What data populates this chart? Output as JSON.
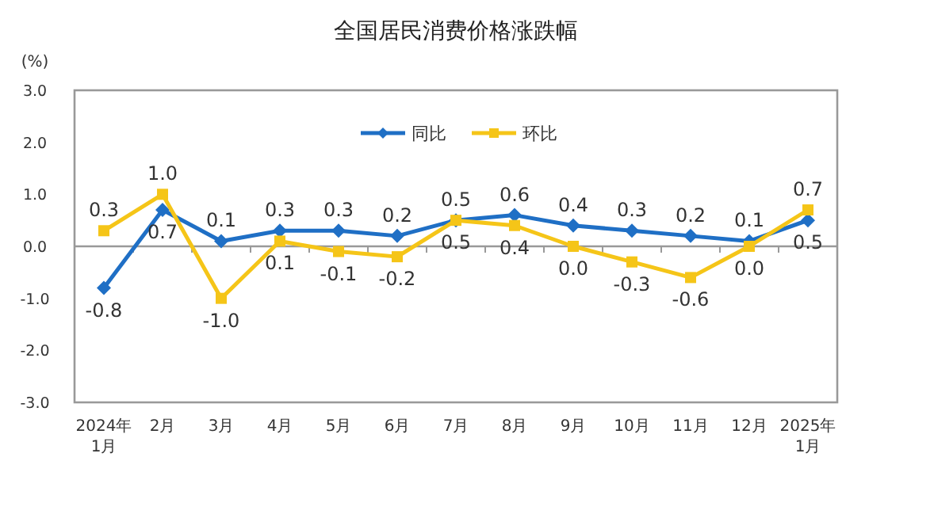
{
  "chart_data": {
    "type": "line",
    "title": "全国居民消费价格涨跌幅",
    "ylabel": "(%)",
    "categories": [
      "2024年\n1月",
      "2月",
      "3月",
      "4月",
      "5月",
      "6月",
      "7月",
      "8月",
      "9月",
      "10月",
      "11月",
      "12月",
      "2025年\n1月"
    ],
    "series": [
      {
        "name": "同比",
        "color": "#1f6fc5",
        "marker": "diamond",
        "values": [
          -0.8,
          0.7,
          0.1,
          0.3,
          0.3,
          0.2,
          0.5,
          0.6,
          0.4,
          0.3,
          0.2,
          0.1,
          0.5
        ],
        "value_labels": [
          "-0.8",
          "0.7",
          "0.1",
          "0.3",
          "0.3",
          "0.2",
          "0.5",
          "0.6",
          "0.4",
          "0.3",
          "0.2",
          "0.1",
          "0.5"
        ]
      },
      {
        "name": "环比",
        "color": "#f5c518",
        "marker": "square",
        "values": [
          0.3,
          1.0,
          -1.0,
          0.1,
          -0.1,
          -0.2,
          0.5,
          0.4,
          0.0,
          -0.3,
          -0.6,
          0.0,
          0.7
        ],
        "value_labels": [
          "0.3",
          "1.0",
          "-1.0",
          "0.1",
          "-0.1",
          "-0.2",
          "0.5",
          "0.4",
          "0.0",
          "-0.3",
          "-0.6",
          "0.0",
          "0.7"
        ]
      }
    ],
    "ylim": [
      -3,
      3
    ],
    "yticks": [
      {
        "value": -3,
        "label": "-3.0"
      },
      {
        "value": -2,
        "label": "-2.0"
      },
      {
        "value": -1,
        "label": "-1.0"
      },
      {
        "value": 0,
        "label": "0.0"
      },
      {
        "value": 1,
        "label": "1.0"
      },
      {
        "value": 2,
        "label": "2.0"
      },
      {
        "value": 3,
        "label": "3.0"
      }
    ],
    "legend": "top"
  }
}
